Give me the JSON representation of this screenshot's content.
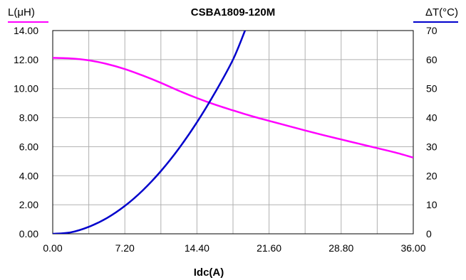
{
  "chart_data": {
    "type": "line",
    "title": "CSBA1809-120M",
    "xlabel": "Idc(A)",
    "ylabel_left": "L(μH)",
    "ylabel_right": "ΔT(°C)",
    "xlim": [
      0,
      36
    ],
    "ylim_left": [
      0,
      14
    ],
    "ylim_right": [
      0,
      70
    ],
    "x_ticks": [
      "0.00",
      "7.20",
      "14.40",
      "21.60",
      "28.80",
      "36.00"
    ],
    "y_left_ticks": [
      "0.00",
      "2.00",
      "4.00",
      "6.00",
      "8.00",
      "10.00",
      "12.00",
      "14.00"
    ],
    "y_right_ticks": [
      "0",
      "10",
      "20",
      "30",
      "40",
      "50",
      "60",
      "70"
    ],
    "grid": true,
    "colors": {
      "inductance": "#ff00ff",
      "temperature": "#0000cc"
    },
    "series": [
      {
        "axis": "left",
        "color": "#ff00ff",
        "x": [
          0,
          1.8,
          3.6,
          5.4,
          7.2,
          9.0,
          10.8,
          12.6,
          14.4,
          16.2,
          18.0,
          19.8,
          21.6,
          23.4,
          25.2,
          27.0,
          28.8,
          30.6,
          32.4,
          34.2,
          36.0
        ],
        "values": [
          12.12,
          12.08,
          11.95,
          11.7,
          11.35,
          10.9,
          10.4,
          9.85,
          9.35,
          8.9,
          8.5,
          8.12,
          7.78,
          7.45,
          7.12,
          6.8,
          6.5,
          6.2,
          5.9,
          5.6,
          5.25
        ]
      },
      {
        "axis": "right",
        "color": "#0000cc",
        "x": [
          0,
          1.8,
          3.6,
          5.4,
          7.2,
          9.0,
          10.8,
          12.6,
          14.4,
          16.2,
          18.0,
          19.2
        ],
        "values": [
          0,
          0.5,
          2.4,
          5.4,
          9.6,
          15,
          21.6,
          29.4,
          38.4,
          48.6,
          60,
          70
        ]
      }
    ]
  }
}
